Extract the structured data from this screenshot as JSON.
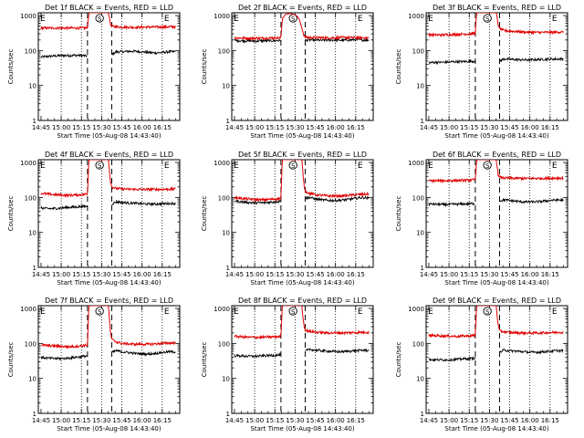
{
  "figure": {
    "x_ticks": [
      "14:45",
      "15:00",
      "15:15",
      "15:30",
      "15:45",
      "16:00",
      "16:15"
    ],
    "x_tick_minutes": [
      0,
      15,
      30,
      45,
      60,
      75,
      90
    ],
    "x_range_minutes": [
      -2,
      103
    ],
    "y_ticks": [
      "1",
      "10",
      "100",
      "1000"
    ],
    "y_range": [
      1,
      1200
    ],
    "y_scale": "log",
    "xlabel": "Start Time (05-Aug-08 14:43:40)",
    "ylabel": "Counts/sec",
    "dotted_x_minutes": [
      15,
      30,
      45,
      60,
      75,
      90
    ],
    "dashed_x_minutes": [
      34.5,
      52.5
    ],
    "markers": [
      {
        "label": "E",
        "x_minute": 0
      },
      {
        "label": "S",
        "x_minute": 43.5
      },
      {
        "label": "E",
        "x_minute": 92
      }
    ]
  },
  "colors": {
    "events": "#000000",
    "lld": "#e00000"
  },
  "chart_data": [
    {
      "type": "line",
      "title": "Det 1f BLACK = Events, RED = LLD",
      "series": [
        {
          "name": "Events",
          "color": "#000000",
          "x": [
            0,
            5,
            10,
            15,
            20,
            25,
            30,
            34.5
          ],
          "values": [
            65,
            68,
            70,
            72,
            72,
            73,
            72,
            70
          ]
        },
        {
          "name": "Events",
          "color": "#000000",
          "x": [
            52.5,
            56,
            60,
            65,
            70,
            75,
            80,
            85,
            90,
            95,
            100
          ],
          "values": [
            78,
            92,
            92,
            95,
            95,
            92,
            88,
            85,
            88,
            92,
            93
          ]
        },
        {
          "name": "LLD",
          "color": "#e00000",
          "x": [
            0,
            10,
            20,
            30,
            34.5,
            35.5,
            40,
            45,
            50,
            51.5,
            52.5,
            56,
            60,
            70,
            80,
            90,
            100
          ],
          "values": [
            440,
            440,
            440,
            440,
            440,
            1200,
            1200,
            1200,
            1200,
            600,
            490,
            480,
            470,
            460,
            470,
            470,
            480
          ]
        }
      ]
    },
    {
      "type": "line",
      "title": "Det 2f BLACK = Events, RED = LLD",
      "series": [
        {
          "name": "Events",
          "color": "#000000",
          "x": [
            0,
            5,
            10,
            15,
            20,
            25,
            30,
            34.5
          ],
          "values": [
            195,
            190,
            190,
            185,
            190,
            190,
            190,
            195
          ]
        },
        {
          "name": "Events",
          "color": "#000000",
          "x": [
            52.5,
            56,
            60,
            65,
            70,
            75,
            80,
            85,
            90,
            95,
            100
          ],
          "values": [
            195,
            200,
            200,
            195,
            200,
            200,
            195,
            200,
            205,
            200,
            200
          ]
        },
        {
          "name": "LLD",
          "color": "#e00000",
          "x": [
            0,
            10,
            20,
            30,
            34.5,
            35.5,
            38,
            42,
            46,
            48,
            50,
            51.5,
            52.5,
            56,
            60,
            70,
            80,
            90,
            100
          ],
          "values": [
            230,
            225,
            225,
            230,
            230,
            800,
            1100,
            1150,
            1000,
            800,
            450,
            280,
            240,
            235,
            235,
            230,
            235,
            235,
            230
          ]
        }
      ]
    },
    {
      "type": "line",
      "title": "Det 3f BLACK = Events, RED = LLD",
      "series": [
        {
          "name": "Events",
          "color": "#000000",
          "x": [
            0,
            5,
            10,
            15,
            20,
            25,
            30,
            34.5
          ],
          "values": [
            45,
            46,
            46,
            47,
            48,
            48,
            49,
            50
          ]
        },
        {
          "name": "Events",
          "color": "#000000",
          "x": [
            52.5,
            56,
            60,
            65,
            70,
            75,
            80,
            85,
            90,
            95,
            100
          ],
          "values": [
            50,
            58,
            56,
            55,
            54,
            54,
            55,
            56,
            57,
            57,
            58
          ]
        },
        {
          "name": "LLD",
          "color": "#e00000",
          "x": [
            0,
            10,
            20,
            30,
            34.5,
            35.5,
            40,
            45,
            50,
            51.5,
            52.5,
            56,
            60,
            70,
            80,
            90,
            100
          ],
          "values": [
            280,
            280,
            290,
            300,
            310,
            1200,
            1200,
            1200,
            1200,
            550,
            420,
            370,
            360,
            340,
            330,
            330,
            340
          ]
        }
      ]
    },
    {
      "type": "line",
      "title": "Det 4f BLACK = Events, RED = LLD",
      "series": [
        {
          "name": "Events",
          "color": "#000000",
          "x": [
            0,
            5,
            10,
            15,
            20,
            25,
            30,
            34.5
          ],
          "values": [
            50,
            48,
            48,
            50,
            52,
            53,
            55,
            56
          ]
        },
        {
          "name": "Events",
          "color": "#000000",
          "x": [
            52.5,
            56,
            60,
            65,
            70,
            75,
            80,
            85,
            90,
            95,
            100
          ],
          "values": [
            65,
            75,
            72,
            70,
            68,
            66,
            65,
            65,
            66,
            67,
            68
          ]
        },
        {
          "name": "LLD",
          "color": "#e00000",
          "x": [
            0,
            10,
            20,
            30,
            34.5,
            35.5,
            40,
            45,
            50,
            51.5,
            52.5,
            56,
            60,
            70,
            80,
            90,
            100
          ],
          "values": [
            130,
            120,
            115,
            120,
            125,
            1200,
            1200,
            1200,
            1200,
            300,
            200,
            180,
            175,
            170,
            170,
            170,
            175
          ]
        }
      ]
    },
    {
      "type": "line",
      "title": "Det 5f BLACK = Events, RED = LLD",
      "series": [
        {
          "name": "Events",
          "color": "#000000",
          "x": [
            0,
            5,
            10,
            15,
            20,
            25,
            30,
            34.5
          ],
          "values": [
            80,
            75,
            72,
            70,
            70,
            72,
            75,
            78
          ]
        },
        {
          "name": "Events",
          "color": "#000000",
          "x": [
            52.5,
            56,
            60,
            65,
            70,
            75,
            80,
            85,
            90,
            95,
            100
          ],
          "values": [
            95,
            100,
            90,
            85,
            82,
            82,
            84,
            88,
            95,
            100,
            95
          ]
        },
        {
          "name": "LLD",
          "color": "#e00000",
          "x": [
            0,
            10,
            20,
            30,
            34.5,
            35.5,
            40,
            45,
            50,
            51.5,
            52.5,
            56,
            60,
            70,
            80,
            90,
            100
          ],
          "values": [
            100,
            90,
            85,
            90,
            95,
            1200,
            1200,
            1200,
            1200,
            250,
            150,
            130,
            120,
            110,
            110,
            120,
            125
          ]
        }
      ]
    },
    {
      "type": "line",
      "title": "Det 6f BLACK = Events, RED = LLD",
      "series": [
        {
          "name": "Events",
          "color": "#000000",
          "x": [
            0,
            5,
            10,
            15,
            20,
            25,
            30,
            34.5
          ],
          "values": [
            65,
            64,
            63,
            63,
            64,
            65,
            66,
            67
          ]
        },
        {
          "name": "Events",
          "color": "#000000",
          "x": [
            52.5,
            56,
            60,
            65,
            70,
            75,
            80,
            85,
            90,
            95,
            100
          ],
          "values": [
            80,
            85,
            82,
            78,
            75,
            74,
            75,
            78,
            82,
            85,
            84
          ]
        },
        {
          "name": "LLD",
          "color": "#e00000",
          "x": [
            0,
            10,
            20,
            30,
            34.5,
            35.5,
            40,
            45,
            50,
            51.5,
            52.5,
            56,
            60,
            70,
            80,
            90,
            100
          ],
          "values": [
            300,
            300,
            305,
            310,
            320,
            1200,
            1200,
            1200,
            1200,
            450,
            380,
            360,
            355,
            350,
            350,
            355,
            360
          ]
        }
      ]
    },
    {
      "type": "line",
      "title": "Det 7f BLACK = Events, RED = LLD",
      "series": [
        {
          "name": "Events",
          "color": "#000000",
          "x": [
            0,
            5,
            10,
            15,
            20,
            25,
            30,
            34.5
          ],
          "values": [
            40,
            38,
            37,
            37,
            38,
            40,
            42,
            44
          ]
        },
        {
          "name": "Events",
          "color": "#000000",
          "x": [
            52.5,
            56,
            60,
            65,
            70,
            75,
            80,
            85,
            90,
            95,
            100
          ],
          "values": [
            55,
            62,
            58,
            55,
            52,
            50,
            50,
            52,
            55,
            58,
            57
          ]
        },
        {
          "name": "LLD",
          "color": "#e00000",
          "x": [
            0,
            10,
            20,
            30,
            34.5,
            35.5,
            40,
            45,
            50,
            51.5,
            52.5,
            56,
            60,
            70,
            80,
            90,
            100
          ],
          "values": [
            90,
            85,
            80,
            85,
            90,
            1200,
            1200,
            1200,
            1200,
            220,
            130,
            110,
            100,
            95,
            95,
            100,
            105
          ]
        }
      ]
    },
    {
      "type": "line",
      "title": "Det 8f BLACK = Events, RED = LLD",
      "series": [
        {
          "name": "Events",
          "color": "#000000",
          "x": [
            0,
            5,
            10,
            15,
            20,
            25,
            30,
            34.5
          ],
          "values": [
            45,
            44,
            43,
            43,
            44,
            45,
            46,
            47
          ]
        },
        {
          "name": "Events",
          "color": "#000000",
          "x": [
            52.5,
            56,
            60,
            65,
            70,
            75,
            80,
            85,
            90,
            95,
            100
          ],
          "values": [
            60,
            68,
            64,
            62,
            60,
            58,
            58,
            60,
            62,
            64,
            63
          ]
        },
        {
          "name": "LLD",
          "color": "#e00000",
          "x": [
            0,
            10,
            20,
            30,
            34.5,
            35.5,
            40,
            45,
            50,
            51.5,
            52.5,
            56,
            60,
            70,
            80,
            90,
            100
          ],
          "values": [
            160,
            150,
            150,
            155,
            160,
            1200,
            1200,
            1200,
            1200,
            350,
            240,
            220,
            210,
            200,
            200,
            205,
            210
          ]
        }
      ]
    },
    {
      "type": "line",
      "title": "Det 9f BLACK = Events, RED = LLD",
      "series": [
        {
          "name": "Events",
          "color": "#000000",
          "x": [
            0,
            5,
            10,
            15,
            20,
            25,
            30,
            34.5
          ],
          "values": [
            35,
            34,
            34,
            34,
            35,
            36,
            37,
            38
          ]
        },
        {
          "name": "Events",
          "color": "#000000",
          "x": [
            52.5,
            56,
            60,
            65,
            70,
            75,
            80,
            85,
            90,
            95,
            100
          ],
          "values": [
            55,
            65,
            62,
            60,
            58,
            56,
            56,
            58,
            60,
            62,
            62
          ]
        },
        {
          "name": "LLD",
          "color": "#e00000",
          "x": [
            0,
            10,
            20,
            30,
            34.5,
            35.5,
            40,
            45,
            50,
            51.5,
            52.5,
            56,
            60,
            70,
            80,
            90,
            100
          ],
          "values": [
            170,
            165,
            160,
            165,
            170,
            1200,
            1200,
            1200,
            1200,
            320,
            230,
            215,
            205,
            200,
            200,
            205,
            210
          ]
        }
      ]
    }
  ]
}
